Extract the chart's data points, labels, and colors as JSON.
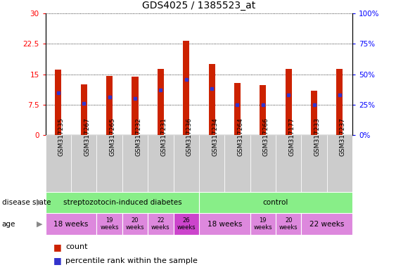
{
  "title": "GDS4025 / 1385523_at",
  "samples": [
    "GSM317235",
    "GSM317267",
    "GSM317265",
    "GSM317232",
    "GSM317231",
    "GSM317236",
    "GSM317234",
    "GSM317264",
    "GSM317266",
    "GSM317177",
    "GSM317233",
    "GSM317237"
  ],
  "counts": [
    16.2,
    12.5,
    14.6,
    14.4,
    16.3,
    23.2,
    17.5,
    12.8,
    12.4,
    16.3,
    11.0,
    16.3
  ],
  "percentiles": [
    35,
    26,
    31,
    30,
    37,
    46,
    38,
    25,
    25,
    33,
    25,
    33
  ],
  "ylim_left": [
    0,
    30
  ],
  "ylim_right": [
    0,
    100
  ],
  "yticks_left": [
    0,
    7.5,
    15,
    22.5,
    30
  ],
  "yticks_right": [
    0,
    25,
    50,
    75,
    100
  ],
  "ytick_labels_left": [
    "0",
    "7.5",
    "15",
    "22.5",
    "30"
  ],
  "ytick_labels_right": [
    "0%",
    "25%",
    "50%",
    "75%",
    "100%"
  ],
  "bar_color": "#cc2200",
  "dot_color": "#3333cc",
  "bg_color": "#ffffff",
  "disease_state_color": "#88ee88",
  "age_color_normal": "#dd88dd",
  "age_color_highlight": "#cc44cc",
  "xtick_bg": "#cccccc",
  "legend_count_color": "#cc2200",
  "legend_dot_color": "#3333cc"
}
